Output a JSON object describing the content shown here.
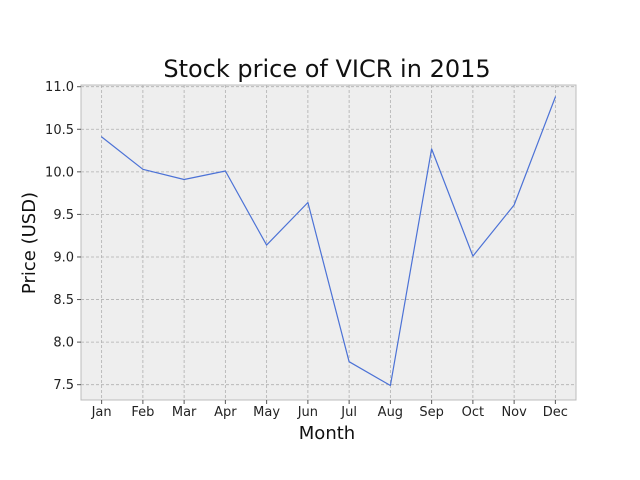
{
  "chart_data": {
    "type": "line",
    "title": "Stock price of VICR in 2015",
    "xlabel": "Month",
    "ylabel": "Price (USD)",
    "categories": [
      "Jan",
      "Feb",
      "Mar",
      "Apr",
      "May",
      "Jun",
      "Jul",
      "Aug",
      "Sep",
      "Oct",
      "Nov",
      "Dec"
    ],
    "series": [
      {
        "values": [
          10.41,
          10.03,
          9.91,
          10.01,
          9.14,
          9.64,
          7.77,
          7.49,
          10.27,
          9.01,
          9.61,
          10.88
        ],
        "color": "#4c72d6"
      }
    ],
    "ylim": [
      7.32,
      11.02
    ],
    "yticks": [
      7.5,
      8.0,
      8.5,
      9.0,
      9.5,
      10.0,
      10.5,
      11.0
    ],
    "ytick_labels": [
      "7.5",
      "8.0",
      "8.5",
      "9.0",
      "9.5",
      "10.0",
      "10.5",
      "11.0"
    ],
    "grid": true,
    "legend": "none",
    "plot_background": "#eeeeee"
  }
}
